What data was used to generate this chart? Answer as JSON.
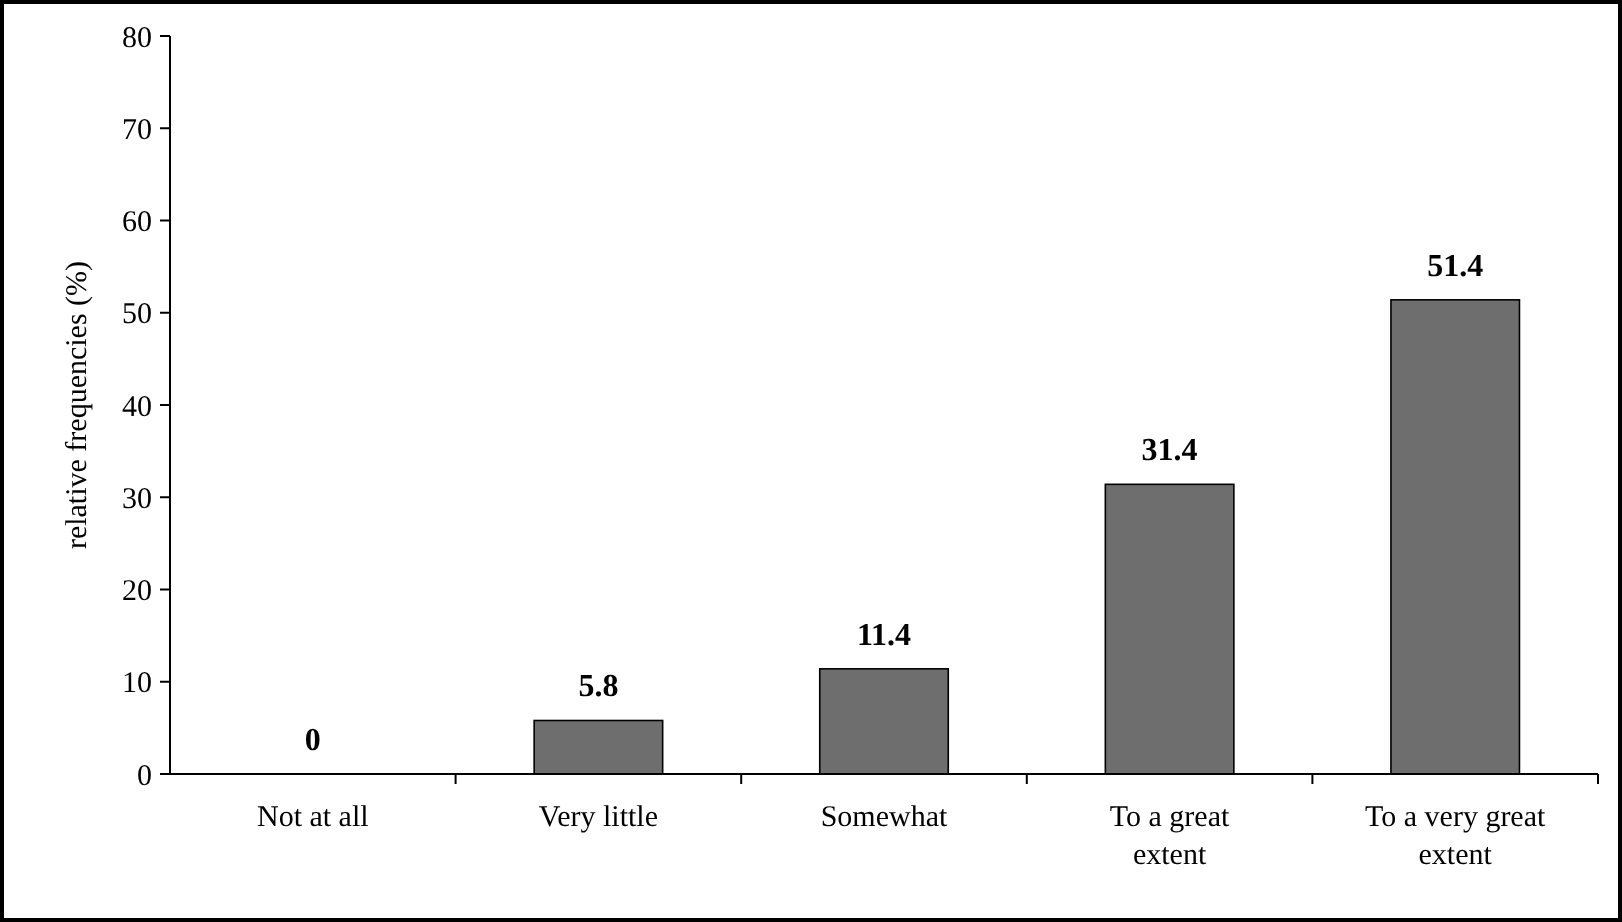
{
  "chart_data": {
    "type": "bar",
    "ylabel": "relative frequencies (%)",
    "categories": [
      "Not at all",
      "Very little",
      "Somewhat",
      "To a great extent",
      "To a very great extent"
    ],
    "values": [
      0,
      5.8,
      11.4,
      31.4,
      51.4
    ],
    "color": "#6e6e6e",
    "data_labels": true,
    "ylim": [
      0,
      80
    ],
    "yticks": [
      0,
      10,
      20,
      30,
      40,
      50,
      60,
      70,
      80
    ],
    "grid": false
  }
}
